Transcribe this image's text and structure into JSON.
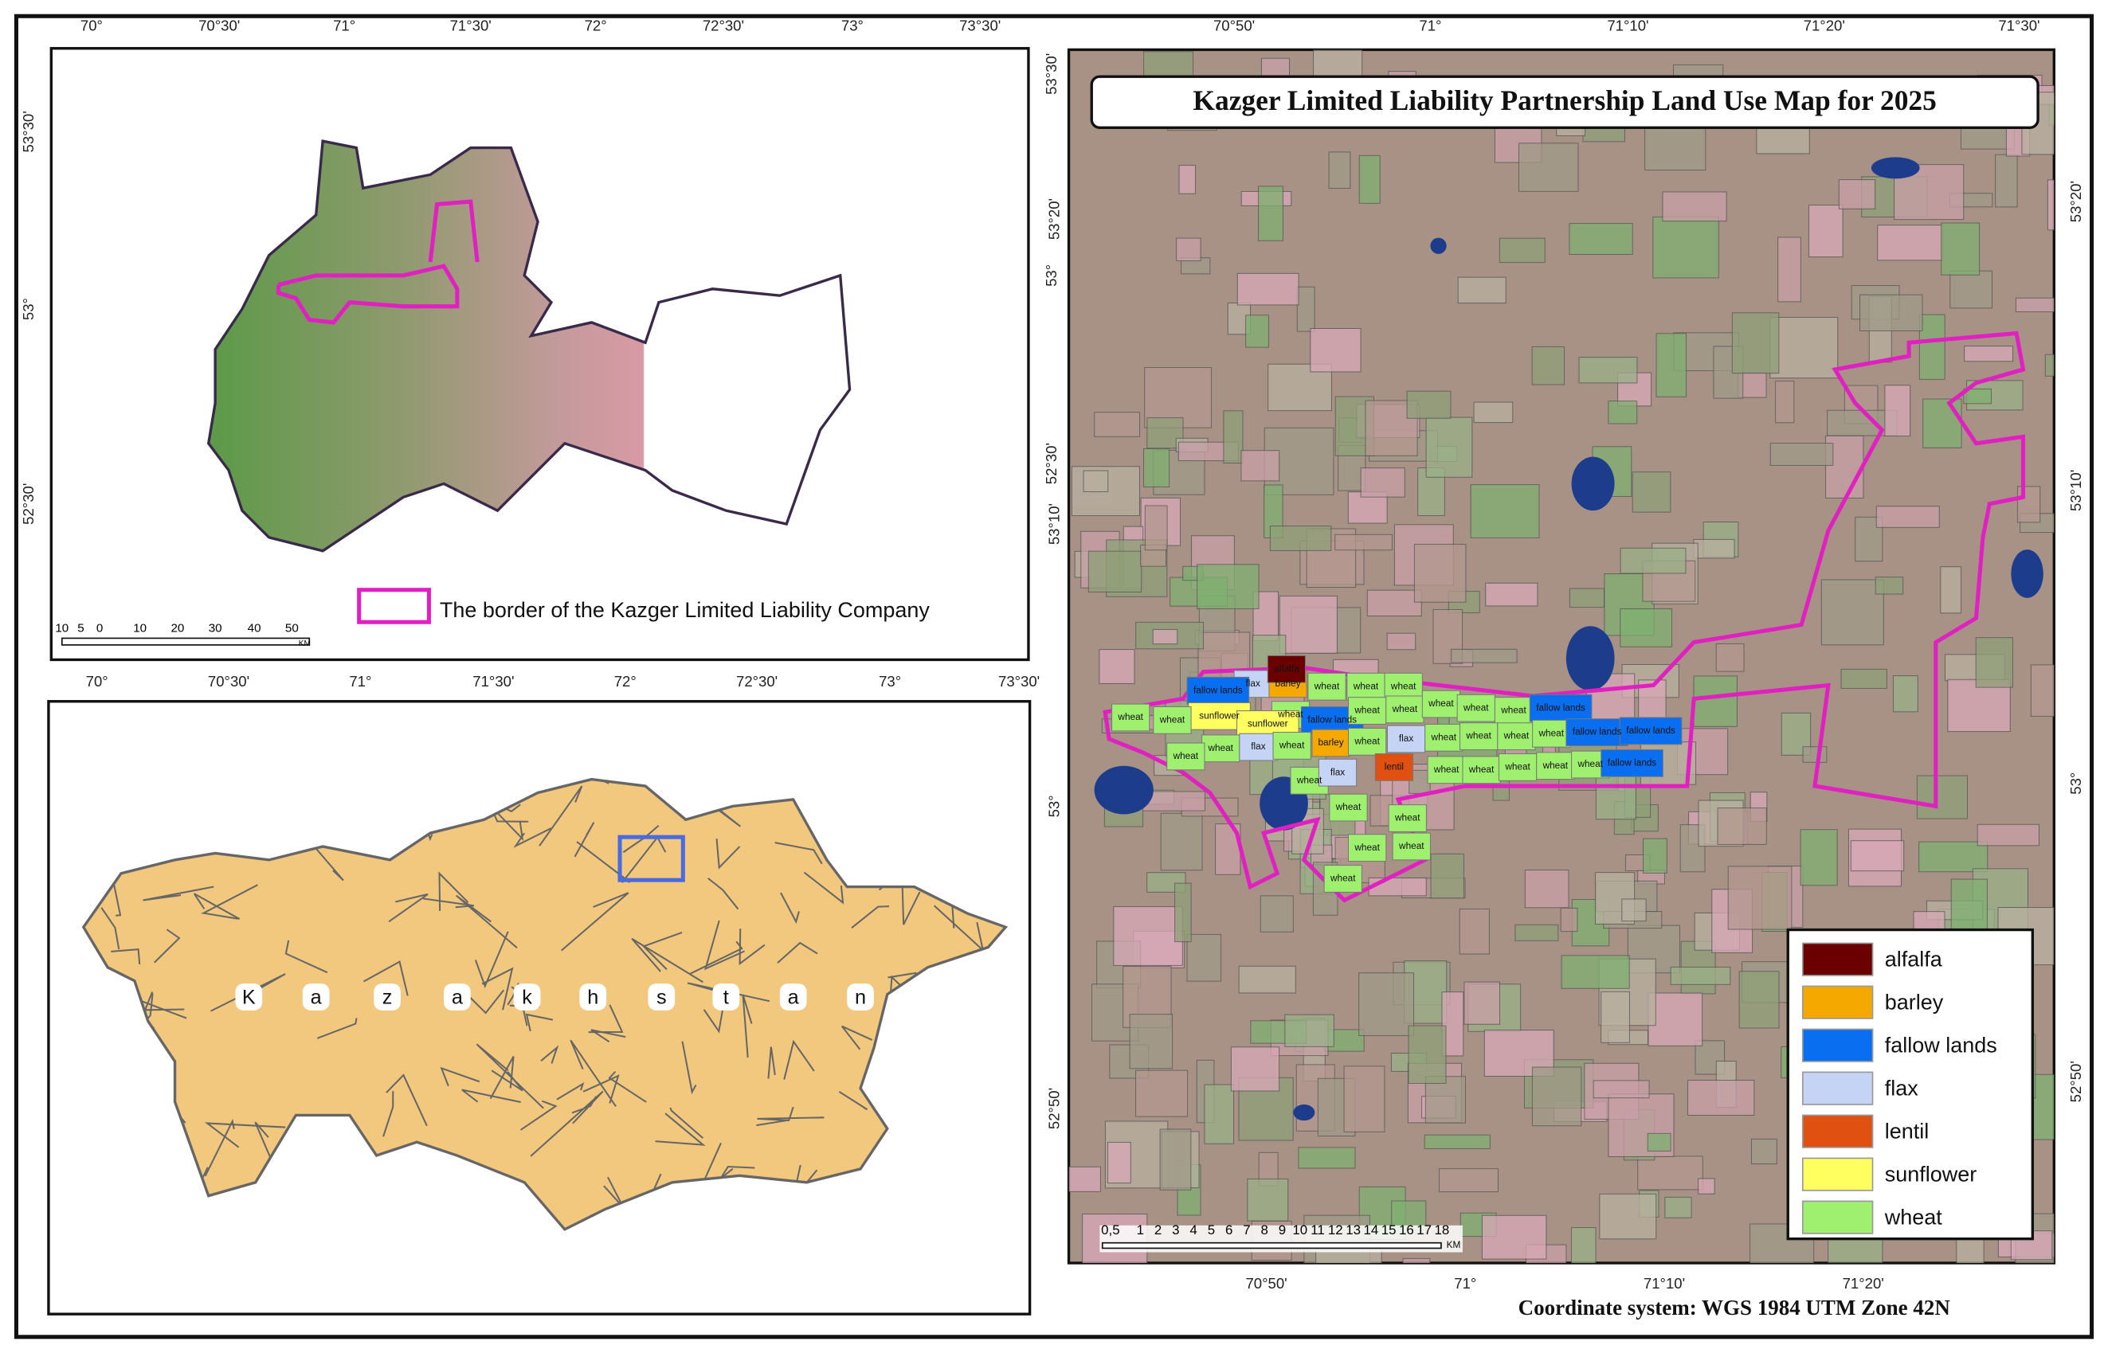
{
  "inset_map": {
    "top_ticks": [
      "70°",
      "70°30'",
      "71°",
      "71°30'",
      "72°",
      "72°30'",
      "73°",
      "73°30'"
    ],
    "bottom_ticks": [
      "70°",
      "70°30'",
      "71°",
      "71°30'",
      "72°",
      "72°30'",
      "73°",
      "73°30'"
    ],
    "left_ticks": [
      "53°30'",
      "53°",
      "52°30'"
    ],
    "right_ticks": [
      "53°30'",
      "53°",
      "52°30'"
    ],
    "legend_label": "The border of the Kazger Limited Liability Company",
    "scale_labels": [
      "10",
      "5",
      "0",
      "10",
      "20",
      "30",
      "40",
      "50"
    ],
    "scale_unit": "KM"
  },
  "locator_map": {
    "country_letters": [
      "K",
      "a",
      "z",
      "a",
      "k",
      "h",
      "s",
      "t",
      "a",
      "n"
    ]
  },
  "main_map": {
    "title": "Kazger Limited Liability Partnership Land Use Map for 2025",
    "top_ticks": [
      "70°50'",
      "71°",
      "71°10'",
      "71°20'",
      "71°30'"
    ],
    "bottom_ticks": [
      "70°50'",
      "71°",
      "71°10'",
      "71°20'"
    ],
    "left_ticks": [
      "53°20'",
      "53°10'",
      "53°",
      "52°50'"
    ],
    "right_ticks": [
      "53°20'",
      "53°10'",
      "53°",
      "52°50'"
    ],
    "field_labels": [
      "flax",
      "barley",
      "alfalfa",
      "wheat",
      "wheat",
      "wheat",
      "fallow lands",
      "sunflower",
      "wheat",
      "sunflower",
      "fallow lands",
      "wheat",
      "wheat",
      "wheat",
      "wheat",
      "wheat",
      "fallow lands",
      "wheat",
      "wheat",
      "wheat",
      "flax",
      "wheat",
      "barley",
      "wheat",
      "flax",
      "wheat",
      "wheat",
      "wheat",
      "wheat",
      "fallow lands",
      "fallow lands",
      "wheat",
      "wheat",
      "flax",
      "lentil",
      "wheat",
      "wheat",
      "wheat",
      "wheat",
      "wheat",
      "fallow lands",
      "wheat",
      "wheat",
      "wheat",
      "wheat",
      "wheat"
    ],
    "legend": [
      {
        "name": "alfalfa",
        "color": "#6b0000"
      },
      {
        "name": "barley",
        "color": "#f5a800"
      },
      {
        "name": "fallow lands",
        "color": "#0a6ef0"
      },
      {
        "name": "flax",
        "color": "#c5d3f5"
      },
      {
        "name": "lentil",
        "color": "#e05010"
      },
      {
        "name": "sunflower",
        "color": "#ffff60"
      },
      {
        "name": "wheat",
        "color": "#a0f070"
      }
    ],
    "scale_labels": [
      "0,5",
      "1",
      "2",
      "3",
      "4",
      "5",
      "6",
      "7",
      "8",
      "9",
      "10",
      "11",
      "12",
      "13",
      "14",
      "15",
      "16",
      "17",
      "18"
    ],
    "scale_unit": "KM",
    "coordinate_system": "Coordinate system: WGS 1984 UTM Zone 42N"
  }
}
